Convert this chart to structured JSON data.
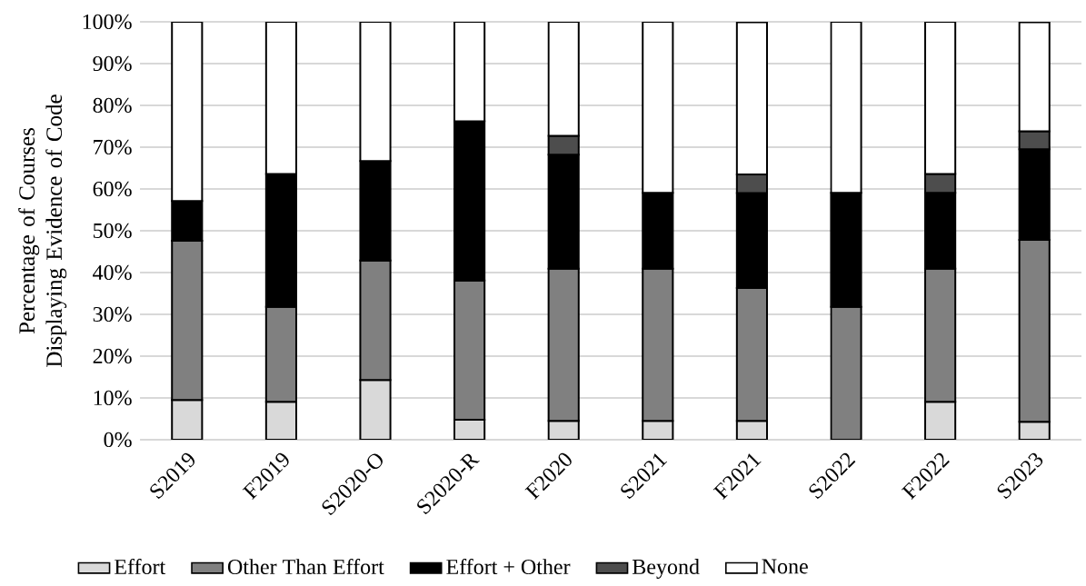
{
  "chart_data": {
    "type": "bar",
    "stacked": true,
    "ylabel": "Percentage of Courses Displaying Evidence of  Code",
    "categories": [
      "S2019",
      "F2019",
      "S2020-O",
      "S2020-R",
      "F2020",
      "S2021",
      "F2021",
      "S2022",
      "F2022",
      "S2023"
    ],
    "series": [
      {
        "name": "Effort",
        "color": "#d9d9d9",
        "values": [
          9.5,
          9.1,
          14.3,
          4.8,
          4.5,
          4.5,
          4.5,
          0,
          9.1,
          4.3
        ]
      },
      {
        "name": "Other Than Effort",
        "color": "#808080",
        "values": [
          38.1,
          22.7,
          28.6,
          33.3,
          36.4,
          36.4,
          31.8,
          31.8,
          31.8,
          43.5
        ]
      },
      {
        "name": "Effort + Other",
        "color": "#000000",
        "values": [
          9.5,
          31.8,
          23.8,
          38.1,
          27.3,
          18.2,
          22.7,
          27.3,
          18.2,
          21.7
        ]
      },
      {
        "name": "Beyond",
        "color": "#4d4d4d",
        "values": [
          0,
          0,
          0,
          0,
          4.5,
          0,
          4.5,
          0,
          4.5,
          4.3
        ]
      },
      {
        "name": "None",
        "color": "#ffffff",
        "values": [
          42.9,
          36.4,
          33.3,
          23.8,
          27.3,
          40.9,
          36.4,
          40.9,
          36.4,
          26.1
        ]
      }
    ],
    "ylim": [
      0,
      100
    ],
    "yticks": [
      {
        "value": 0,
        "label": "0%"
      },
      {
        "value": 10,
        "label": "10%"
      },
      {
        "value": 20,
        "label": "20%"
      },
      {
        "value": 30,
        "label": "30%"
      },
      {
        "value": 40,
        "label": "40%"
      },
      {
        "value": 50,
        "label": "50%"
      },
      {
        "value": 60,
        "label": "60%"
      },
      {
        "value": 70,
        "label": "70%"
      },
      {
        "value": 80,
        "label": "80%"
      },
      {
        "value": 90,
        "label": "90%"
      },
      {
        "value": 100,
        "label": "100%"
      }
    ],
    "grid": "y",
    "legend": "bottom"
  }
}
